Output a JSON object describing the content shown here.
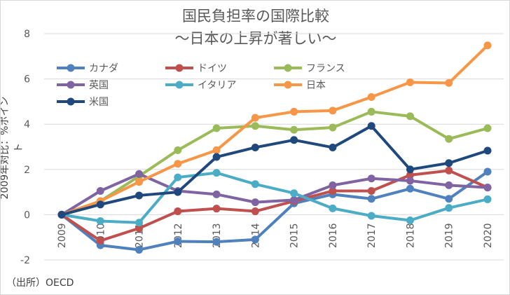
{
  "chart_data": {
    "type": "line",
    "title": "国民負担率の国際比較",
    "subtitle": "～日本の上昇が著しい～",
    "xlabel": "",
    "ylabel": "2009年対比：%ポイント",
    "ylim": [
      -2,
      8
    ],
    "yticks": [
      -2,
      0,
      2,
      4,
      6,
      8
    ],
    "grid": true,
    "legend": "top-left",
    "x": [
      "2009",
      "2010",
      "2011",
      "2012",
      "2013",
      "2014",
      "2015",
      "2016",
      "2017",
      "2018",
      "2019",
      "2020"
    ],
    "series": [
      {
        "name": "カナダ",
        "color": "#4e81bd",
        "values": [
          0,
          -1.35,
          -1.55,
          -1.18,
          -1.2,
          -1.1,
          0.5,
          0.9,
          0.7,
          1.15,
          0.7,
          1.9
        ]
      },
      {
        "name": "ドイツ",
        "color": "#c0504d",
        "values": [
          0,
          -1.15,
          -0.6,
          0.15,
          0.27,
          0.15,
          0.6,
          1.05,
          1.05,
          1.75,
          1.95,
          1.2
        ]
      },
      {
        "name": "フランス",
        "color": "#9bbb59",
        "values": [
          0,
          0.6,
          1.7,
          2.85,
          3.82,
          3.92,
          3.75,
          3.85,
          4.55,
          4.35,
          3.35,
          3.82
        ]
      },
      {
        "name": "英国",
        "color": "#8064a2",
        "values": [
          0,
          1.05,
          1.8,
          1.05,
          0.9,
          0.55,
          0.65,
          1.3,
          1.6,
          1.5,
          1.3,
          1.2
        ]
      },
      {
        "name": "イタリア",
        "color": "#4bacc6",
        "values": [
          0,
          -0.28,
          -0.35,
          1.65,
          1.85,
          1.35,
          0.95,
          0.28,
          -0.05,
          -0.25,
          0.3,
          0.68
        ]
      },
      {
        "name": "日本",
        "color": "#f79646",
        "values": [
          0,
          0.6,
          1.45,
          2.25,
          2.85,
          4.28,
          4.55,
          4.6,
          5.2,
          5.85,
          5.82,
          7.48
        ]
      },
      {
        "name": "米国",
        "color": "#1f497d",
        "values": [
          0,
          0.45,
          0.85,
          1.0,
          2.55,
          2.97,
          3.3,
          2.97,
          3.92,
          2.0,
          2.28,
          2.83
        ]
      }
    ]
  },
  "source": "（出所）OECD"
}
